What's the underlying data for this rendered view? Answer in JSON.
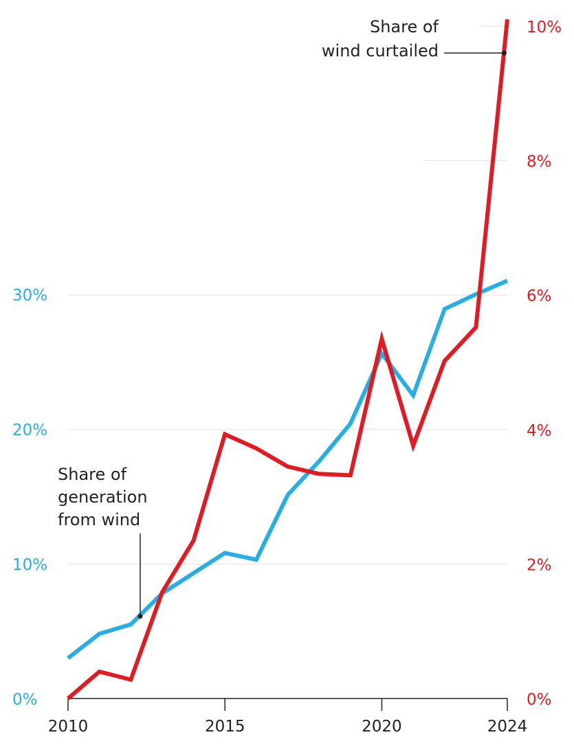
{
  "chart_data": {
    "type": "line",
    "x": [
      2010,
      2011,
      2012,
      2013,
      2014,
      2015,
      2016,
      2017,
      2018,
      2019,
      2020,
      2021,
      2022,
      2023,
      2024
    ],
    "xticks": [
      2010,
      2015,
      2020,
      2024
    ],
    "xtick_labels": [
      "2010",
      "2015",
      "2020",
      "2024"
    ],
    "series": [
      {
        "name": "Share of generation from wind",
        "axis": "left",
        "color": "#29aee3",
        "values": [
          3.0,
          4.8,
          5.5,
          7.8,
          9.3,
          10.8,
          10.3,
          15.1,
          17.6,
          20.4,
          25.6,
          22.5,
          28.9,
          30.0,
          31.0
        ]
      },
      {
        "name": "Share of wind curtailed",
        "axis": "right",
        "color": "#e01b22",
        "values": [
          0.0,
          0.4,
          0.28,
          1.58,
          2.35,
          3.93,
          3.72,
          3.45,
          3.34,
          3.32,
          5.35,
          3.76,
          5.02,
          5.52,
          10.1
        ]
      }
    ],
    "y_left": {
      "ylim": [
        0,
        30
      ],
      "ticks": [
        0,
        10,
        20,
        30
      ],
      "tick_labels": [
        "0%",
        "10%",
        "20%",
        "30%"
      ]
    },
    "y_right": {
      "ylim": [
        0,
        10
      ],
      "ticks": [
        0,
        2,
        4,
        6,
        8,
        10
      ],
      "tick_labels": [
        "0%",
        "2%",
        "4%",
        "6%",
        "8%",
        "10%"
      ]
    },
    "annotations": [
      {
        "series": "Share of generation from wind",
        "lines": [
          "Share of",
          "generation",
          "from wind"
        ],
        "x": 2012.3,
        "y": 6.1
      },
      {
        "series": "Share of wind curtailed",
        "lines": [
          "Share of",
          "wind curtailed"
        ],
        "x": 2023.9,
        "y": 9.6
      }
    ],
    "grid": true
  }
}
